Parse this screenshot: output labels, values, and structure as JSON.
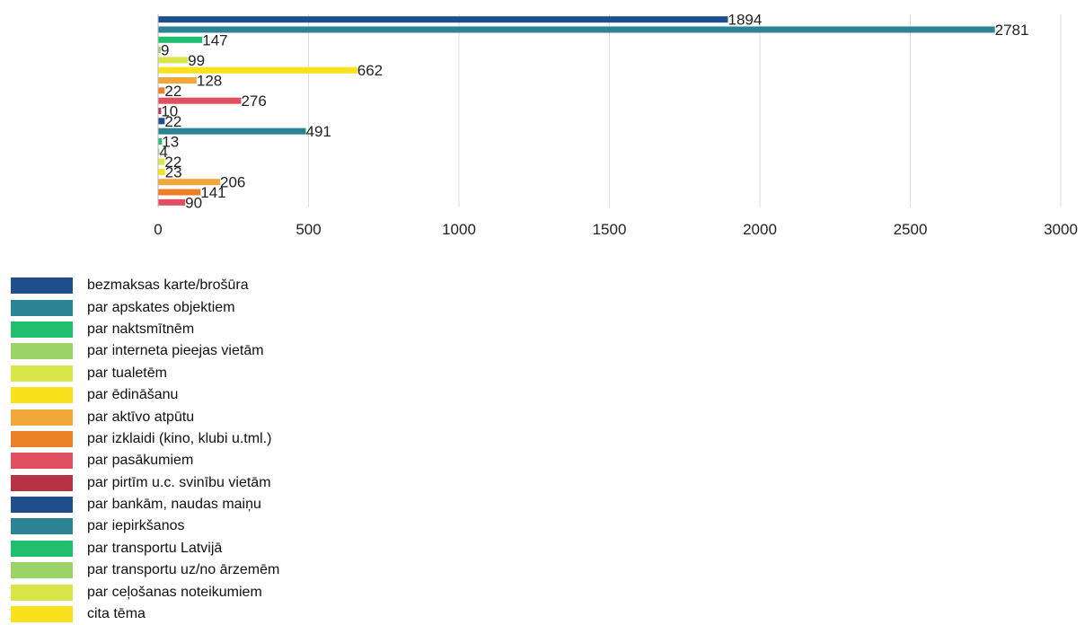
{
  "chart_data": {
    "type": "bar",
    "orientation": "horizontal",
    "categories": [
      "bezmaksas karte/brošūra",
      "par apskates objektiem",
      "par naktsmītnēm",
      "par interneta pieejas vietām",
      "par tualetēm",
      "par ēdināšanu",
      "par aktīvo atpūtu",
      "par izklaidi (kino, klubi u.tml.)",
      "par pasākumiem",
      "par pirtīm u.c. svinību vietām",
      "par bankām, naudas maiņu",
      "par iepirkšanos",
      "par transportu Latvijā",
      "par transportu uz/no ārzemēm",
      "par ceļošanas noteikumiem",
      "cita tēma",
      "",
      "",
      ""
    ],
    "values": [
      1894,
      2781,
      147,
      9,
      99,
      662,
      128,
      22,
      276,
      10,
      22,
      491,
      13,
      4,
      22,
      23,
      206,
      141,
      90
    ],
    "colors": [
      "#1f4e8c",
      "#2b8494",
      "#1fbf6f",
      "#9bd368",
      "#d8e64a",
      "#f9e21b",
      "#f2a73b",
      "#ea8127",
      "#e04f5f",
      "#b73245",
      "#1f4e8c",
      "#2b8494",
      "#1fbf6f",
      "#9bd368",
      "#d8e64a",
      "#f9e21b",
      "#f2a73b",
      "#ea8127",
      "#e04f5f"
    ],
    "xlim": [
      0,
      3000
    ],
    "x_ticks": [
      0,
      500,
      1000,
      1500,
      2000,
      2500,
      3000
    ],
    "grid": true,
    "legend_position": "bottom-left",
    "legend": [
      {
        "label": "bezmaksas karte/brošūra",
        "color": "#1f4e8c"
      },
      {
        "label": "par apskates objektiem",
        "color": "#2b8494"
      },
      {
        "label": "par naktsmītnēm",
        "color": "#1fbf6f"
      },
      {
        "label": "par interneta pieejas vietām",
        "color": "#9bd368"
      },
      {
        "label": "par tualetēm",
        "color": "#d8e64a"
      },
      {
        "label": "par ēdināšanu",
        "color": "#f9e21b"
      },
      {
        "label": "par aktīvo atpūtu",
        "color": "#f2a73b"
      },
      {
        "label": "par izklaidi (kino, klubi u.tml.)",
        "color": "#ea8127"
      },
      {
        "label": "par pasākumiem",
        "color": "#e04f5f"
      },
      {
        "label": "par pirtīm u.c. svinību vietām",
        "color": "#b73245"
      },
      {
        "label": "par bankām, naudas maiņu",
        "color": "#1f4e8c"
      },
      {
        "label": "par iepirkšanos",
        "color": "#2b8494"
      },
      {
        "label": "par transportu Latvijā",
        "color": "#1fbf6f"
      },
      {
        "label": "par transportu uz/no ārzemēm",
        "color": "#9bd368"
      },
      {
        "label": "par ceļošanas noteikumiem",
        "color": "#d8e64a"
      },
      {
        "label": "cita tēma",
        "color": "#f9e21b"
      }
    ]
  }
}
